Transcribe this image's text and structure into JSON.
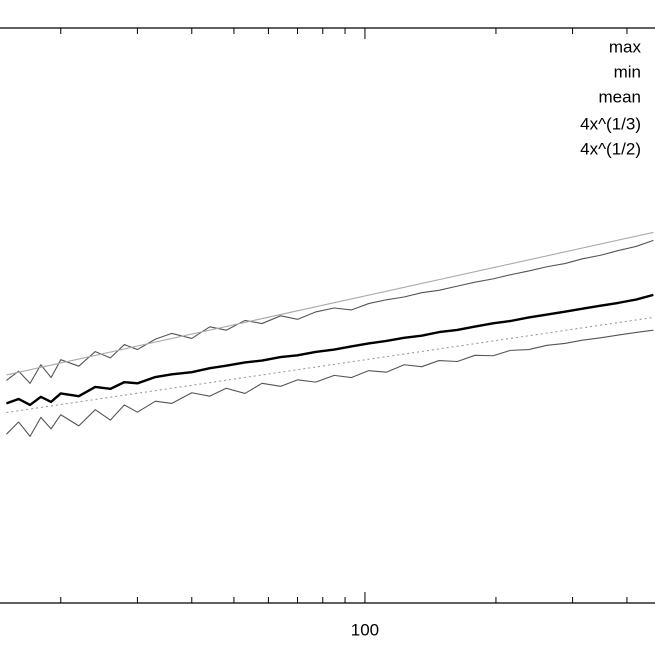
{
  "chart_data": {
    "type": "line",
    "x_scale": "log",
    "y_scale": "log",
    "xlim": [
      14.5,
      464
    ],
    "ylim": [
      1,
      1000
    ],
    "xticks": [
      100
    ],
    "xminor_ticks": [
      20,
      30,
      40,
      50,
      60,
      70,
      80,
      90,
      200,
      300,
      400
    ],
    "legend": "upper right",
    "x": [
      15,
      16,
      17,
      18,
      19,
      20,
      22,
      24,
      26,
      28,
      30,
      33,
      36,
      40,
      44,
      48,
      53,
      58,
      64,
      70,
      77,
      85,
      93,
      102,
      112,
      123,
      135,
      148,
      163,
      179,
      197,
      216,
      238,
      262,
      288,
      316,
      348,
      382,
      420,
      460
    ],
    "series": [
      {
        "name": "max",
        "color": "#555555",
        "values": [
          14.5,
          16.2,
          14.0,
          17.5,
          15.0,
          18.6,
          17.2,
          20.5,
          19.0,
          22.3,
          21.0,
          23.8,
          25.5,
          24.0,
          27.6,
          26.5,
          29.8,
          28.7,
          31.5,
          30.2,
          33.0,
          34.6,
          33.8,
          36.5,
          38.2,
          39.5,
          41.6,
          42.8,
          45.0,
          47.2,
          49.1,
          51.6,
          54.0,
          56.8,
          59.0,
          62.5,
          65.2,
          69.0,
          72.5,
          78.0
        ]
      },
      {
        "name": "min",
        "color": "#555555",
        "values": [
          7.6,
          8.8,
          7.4,
          9.3,
          8.1,
          9.6,
          8.4,
          10.2,
          9.0,
          10.8,
          9.9,
          11.3,
          11.0,
          12.5,
          12.0,
          13.2,
          12.4,
          14.0,
          13.5,
          14.6,
          14.2,
          15.4,
          15.0,
          16.3,
          16.0,
          17.5,
          17.1,
          18.4,
          18.2,
          19.6,
          19.5,
          20.8,
          21.0,
          22.1,
          22.6,
          23.5,
          24.2,
          25.0,
          25.8,
          26.5
        ]
      },
      {
        "name": "mean",
        "color": "#000000",
        "values": [
          11.0,
          11.6,
          10.8,
          11.9,
          11.2,
          12.4,
          12.0,
          13.4,
          13.1,
          14.2,
          14.0,
          15.1,
          15.6,
          16.0,
          16.8,
          17.3,
          18.0,
          18.4,
          19.2,
          19.6,
          20.4,
          21.0,
          21.8,
          22.6,
          23.3,
          24.2,
          24.8,
          25.9,
          26.6,
          27.7,
          28.8,
          29.6,
          30.9,
          32.0,
          33.1,
          34.3,
          35.6,
          36.8,
          38.3,
          40.5
        ]
      },
      {
        "name": "4x^(1/3)",
        "color": "#999999",
        "dashed": true,
        "x": [
          15,
          460
        ],
        "values": [
          9.86,
          30.9
        ]
      },
      {
        "name": "4x^(1/2)",
        "color": "#aaaaaa",
        "x": [
          15,
          460
        ],
        "values": [
          15.49,
          85.8
        ]
      }
    ]
  }
}
